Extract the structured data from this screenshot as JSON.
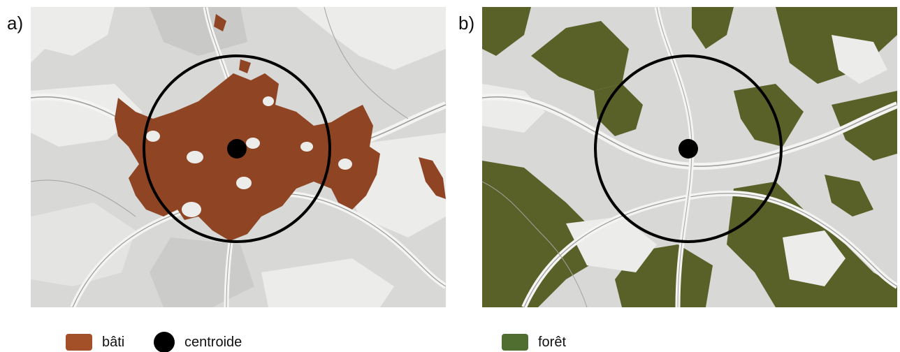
{
  "panels": [
    {
      "label": "a)",
      "highlight_color": "#8f4424"
    },
    {
      "label": "b)",
      "highlight_color": "#5a6128"
    }
  ],
  "legend": {
    "bati": {
      "label": "bâti",
      "color": "#a34f27"
    },
    "centroide": {
      "label": "centroide",
      "color": "#000000"
    },
    "foret": {
      "label": "forêt",
      "color": "#4f6e30"
    }
  },
  "map_colors": {
    "base": "#d8d8d6",
    "light": "#ececeb",
    "mid": "#c6c6c4",
    "road": "#9a9a98"
  }
}
